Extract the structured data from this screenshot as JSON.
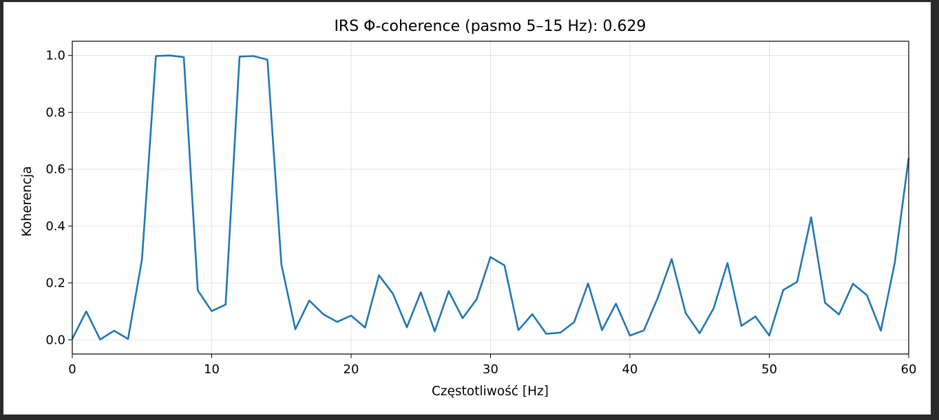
{
  "chart_data": {
    "type": "line",
    "title": "IRS Φ-coherence (pasmo 5–15 Hz): 0.629",
    "xlabel": "Częstotliwość [Hz]",
    "ylabel": "Koherencja",
    "xlim": [
      0,
      60
    ],
    "ylim": [
      -0.05,
      1.05
    ],
    "xticks": [
      0,
      10,
      20,
      30,
      40,
      50,
      60
    ],
    "yticks": [
      0.0,
      0.2,
      0.4,
      0.6,
      0.8,
      1.0
    ],
    "xtick_labels": [
      "0",
      "10",
      "20",
      "30",
      "40",
      "50",
      "60"
    ],
    "ytick_labels": [
      "0.0",
      "0.2",
      "0.4",
      "0.6",
      "0.8",
      "1.0"
    ],
    "grid": true,
    "line_color": "#1f77b4",
    "series": [
      {
        "x": [
          0,
          1,
          2,
          3,
          4,
          5,
          6,
          7,
          8,
          9,
          10,
          11,
          12,
          13,
          14,
          15,
          16,
          17,
          18,
          19,
          20,
          21,
          22,
          23,
          24,
          25,
          26,
          27,
          28,
          29,
          30,
          31,
          32,
          33,
          34,
          35,
          36,
          37,
          38,
          39,
          40,
          41,
          42,
          43,
          44,
          45,
          46,
          47,
          48,
          49,
          50,
          51,
          52,
          53,
          54,
          55,
          56,
          57,
          58,
          59,
          60
        ],
        "values": [
          0.003,
          0.1,
          0.001,
          0.032,
          0.003,
          0.283,
          0.998,
          1.0,
          0.994,
          0.174,
          0.101,
          0.124,
          0.996,
          0.998,
          0.985,
          0.265,
          0.037,
          0.138,
          0.09,
          0.063,
          0.085,
          0.043,
          0.227,
          0.162,
          0.044,
          0.167,
          0.03,
          0.171,
          0.076,
          0.142,
          0.291,
          0.262,
          0.034,
          0.09,
          0.021,
          0.025,
          0.062,
          0.198,
          0.034,
          0.127,
          0.015,
          0.033,
          0.148,
          0.284,
          0.094,
          0.023,
          0.11,
          0.27,
          0.049,
          0.082,
          0.015,
          0.175,
          0.204,
          0.431,
          0.13,
          0.089,
          0.197,
          0.157,
          0.032,
          0.271,
          0.64
        ]
      }
    ]
  }
}
